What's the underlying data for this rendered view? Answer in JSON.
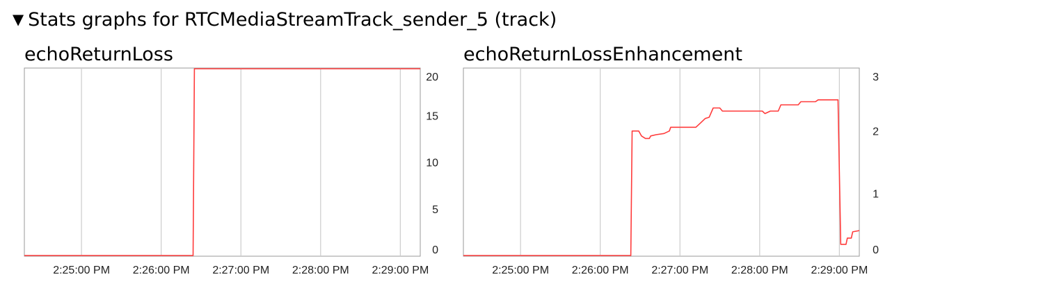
{
  "section": {
    "toggle_icon": "collapse-triangle-icon",
    "title": "Stats graphs for RTCMediaStreamTrack_sender_5 (track)"
  },
  "colors": {
    "line": "#ff3b3b",
    "grid": "#cccccc",
    "frame": "#999999"
  },
  "chart_data": [
    {
      "type": "line",
      "title": "echoReturnLoss",
      "x_tick_labels": [
        "2:25:00 PM",
        "2:26:00 PM",
        "2:27:00 PM",
        "2:28:00 PM",
        "2:29:00 PM"
      ],
      "y_tick_labels": [
        "20",
        "15",
        "10",
        "5",
        "0"
      ],
      "ylim": [
        0,
        20
      ],
      "xlim": [
        "2:24:17 PM",
        "2:29:15 PM"
      ],
      "grid": true,
      "series": [
        {
          "points": [
            [
              "2:24:17 PM",
              0
            ],
            [
              "2:26:24 PM",
              0
            ],
            [
              "2:26:25 PM",
              20
            ],
            [
              "2:29:15 PM",
              20
            ]
          ]
        }
      ]
    },
    {
      "type": "line",
      "title": "echoReturnLossEnhancement",
      "x_tick_labels": [
        "2:25:00 PM",
        "2:26:00 PM",
        "2:27:00 PM",
        "2:28:00 PM",
        "2:29:00 PM"
      ],
      "y_tick_labels": [
        "3",
        "2",
        "1",
        "0"
      ],
      "ylim": [
        0,
        3
      ],
      "xlim": [
        "2:24:17 PM",
        "2:29:15 PM"
      ],
      "grid": true,
      "series": [
        {
          "points": [
            [
              "2:24:17 PM",
              0
            ],
            [
              "2:26:23 PM",
              0
            ],
            [
              "2:26:24 PM",
              2.0
            ],
            [
              "2:26:29 PM",
              2.0
            ],
            [
              "2:26:31 PM",
              1.92
            ],
            [
              "2:26:34 PM",
              1.88
            ],
            [
              "2:26:37 PM",
              1.88
            ],
            [
              "2:26:38 PM",
              1.92
            ],
            [
              "2:26:42 PM",
              1.94
            ],
            [
              "2:26:48 PM",
              1.96
            ],
            [
              "2:26:52 PM",
              2.0
            ],
            [
              "2:26:53 PM",
              2.06
            ],
            [
              "2:27:12 PM",
              2.06
            ],
            [
              "2:27:15 PM",
              2.12
            ],
            [
              "2:27:19 PM",
              2.2
            ],
            [
              "2:27:22 PM",
              2.22
            ],
            [
              "2:27:25 PM",
              2.37
            ],
            [
              "2:27:30 PM",
              2.37
            ],
            [
              "2:27:32 PM",
              2.32
            ],
            [
              "2:28:02 PM",
              2.32
            ],
            [
              "2:28:04 PM",
              2.28
            ],
            [
              "2:28:08 PM",
              2.32
            ],
            [
              "2:28:14 PM",
              2.32
            ],
            [
              "2:28:16 PM",
              2.42
            ],
            [
              "2:28:29 PM",
              2.42
            ],
            [
              "2:28:31 PM",
              2.47
            ],
            [
              "2:28:42 PM",
              2.47
            ],
            [
              "2:28:44 PM",
              2.5
            ],
            [
              "2:28:59 PM",
              2.5
            ],
            [
              "2:29:01 PM",
              0.18
            ],
            [
              "2:29:05 PM",
              0.18
            ],
            [
              "2:29:06 PM",
              0.28
            ],
            [
              "2:29:09 PM",
              0.28
            ],
            [
              "2:29:10 PM",
              0.38
            ],
            [
              "2:29:15 PM",
              0.4
            ]
          ]
        }
      ]
    }
  ]
}
